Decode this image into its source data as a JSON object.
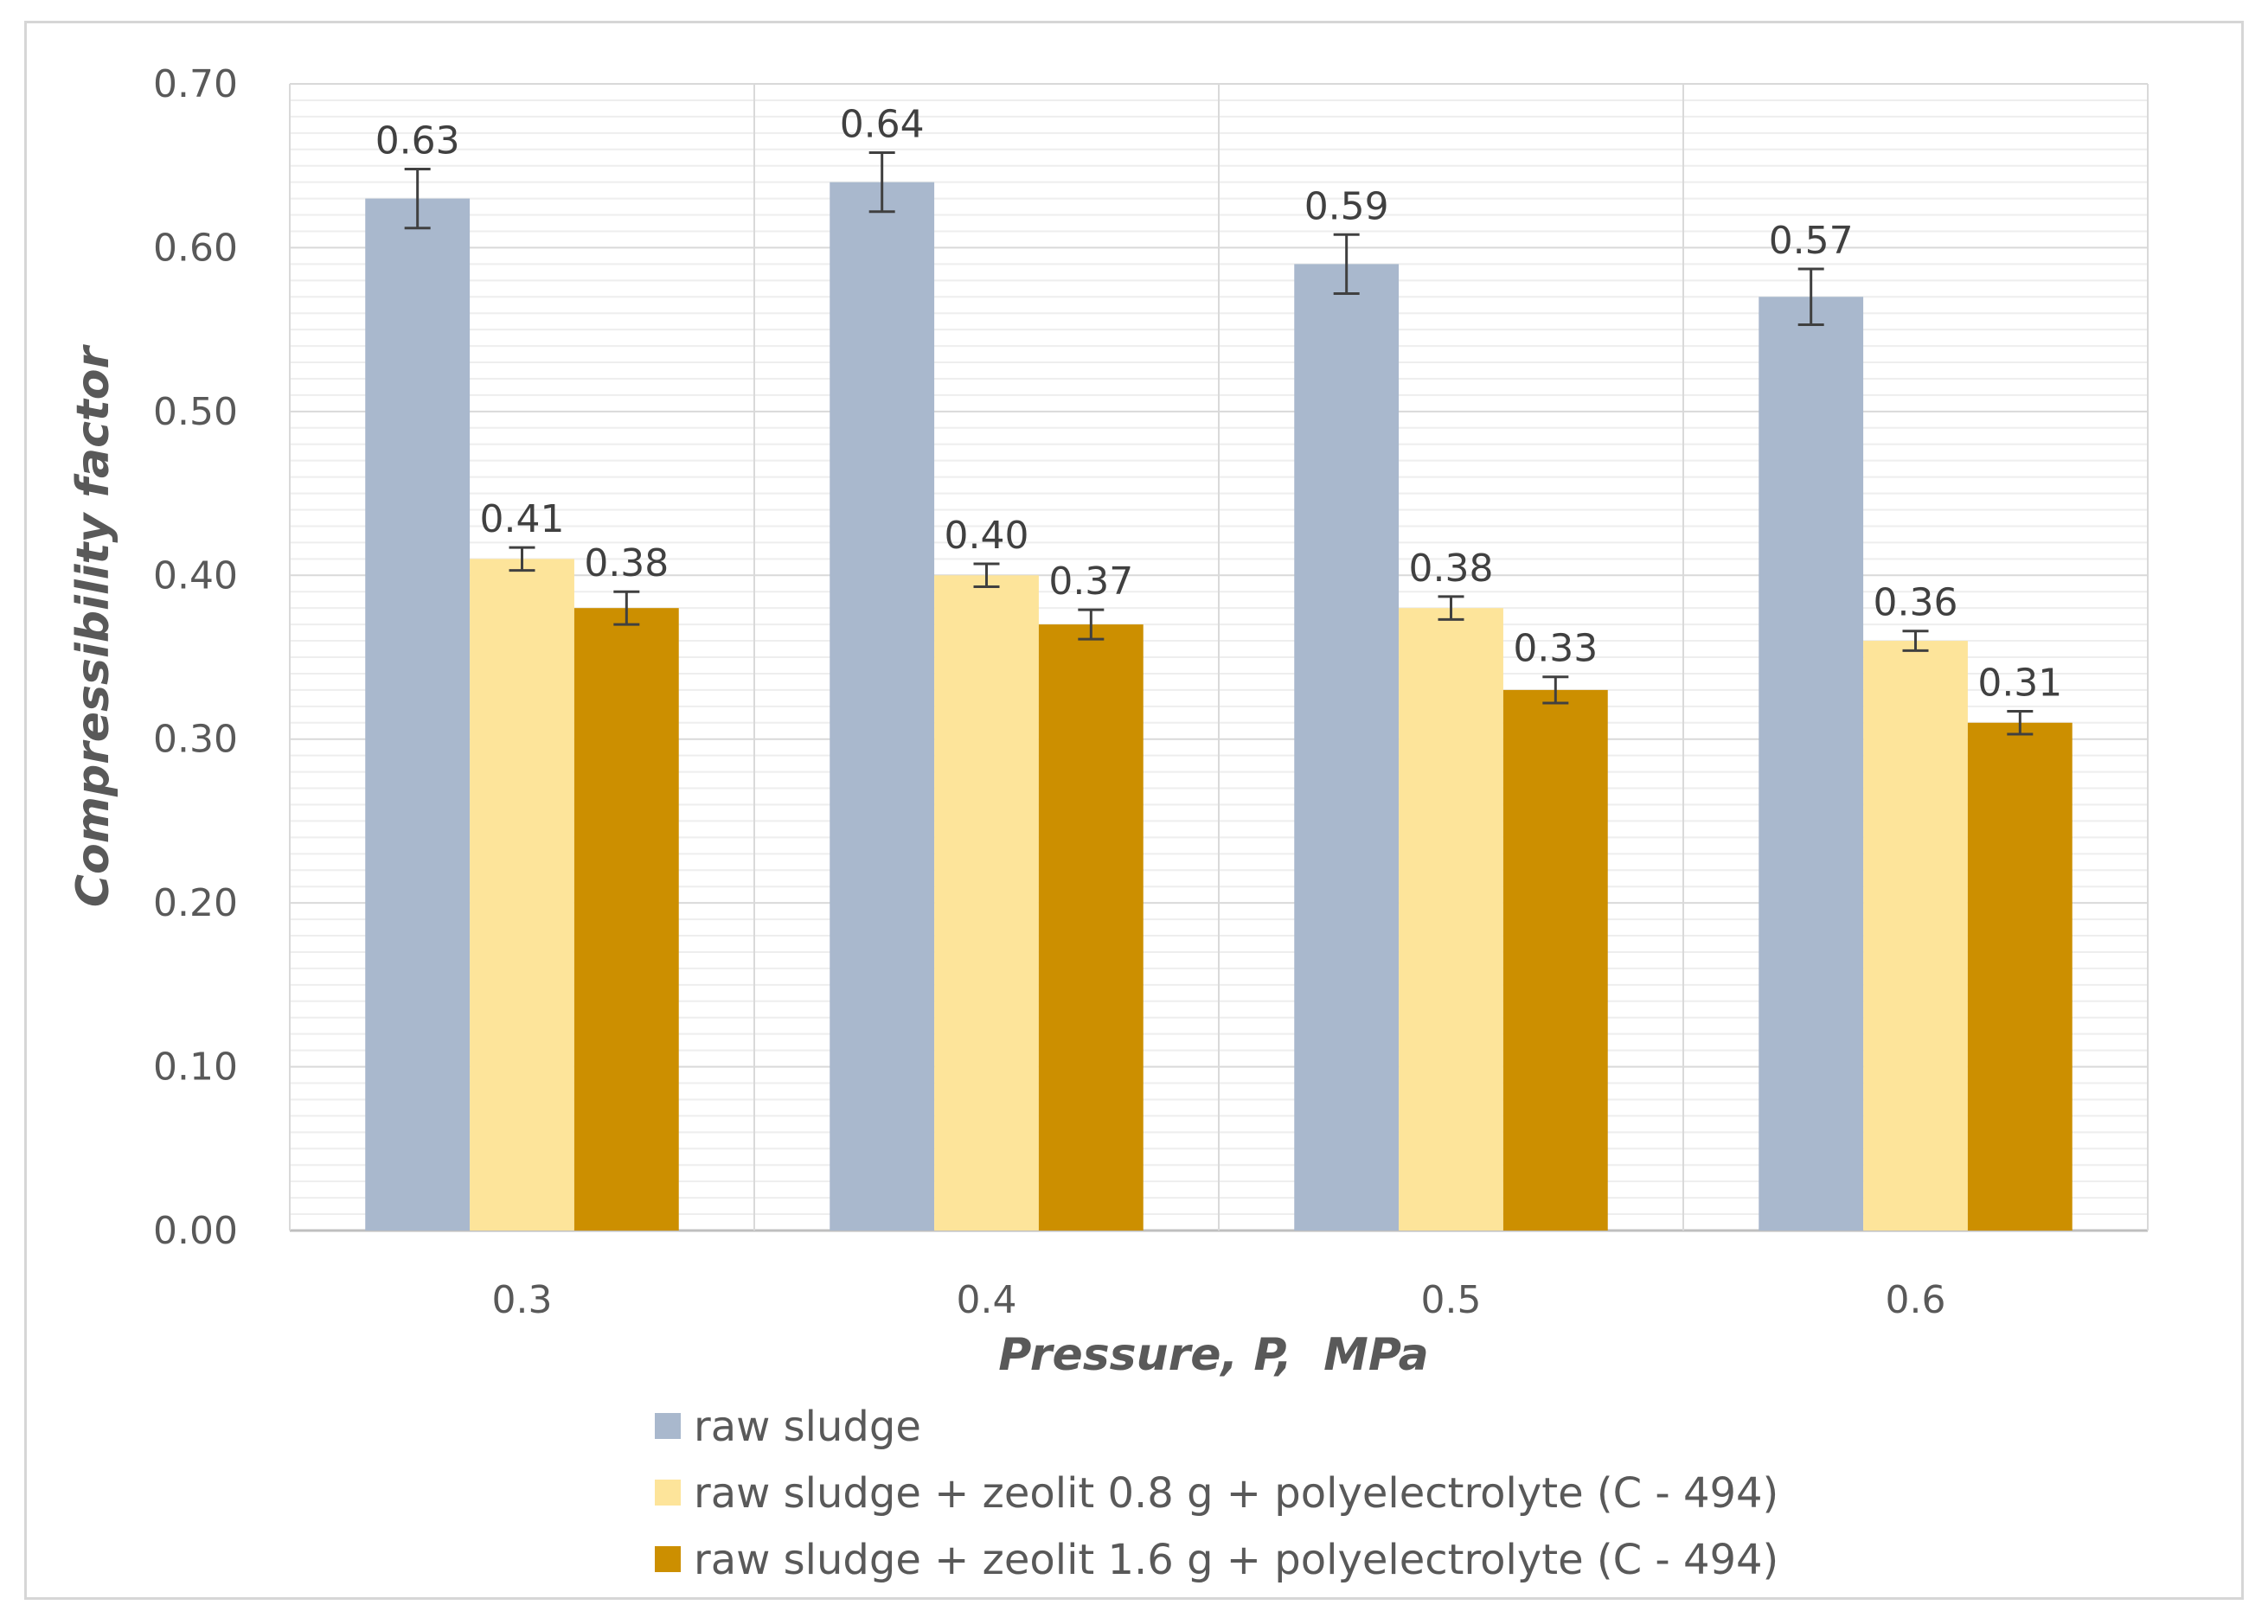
{
  "chart_data": {
    "type": "bar",
    "title": "",
    "xlabel": "Pressure, P,  MPa",
    "ylabel": "Compressibility factor",
    "ylim": [
      0,
      0.7
    ],
    "yticks": [
      "0.00",
      "0.10",
      "0.20",
      "0.30",
      "0.40",
      "0.50",
      "0.60",
      "0.70"
    ],
    "categories": [
      "0.3",
      "0.4",
      "0.5",
      "0.6"
    ],
    "grid": true,
    "legend_position": "bottom",
    "series": [
      {
        "name": "raw sludge",
        "color": "#a9b8cd",
        "values": [
          0.63,
          0.64,
          0.59,
          0.57
        ],
        "labels": [
          "0.63",
          "0.64",
          "0.59",
          "0.57"
        ],
        "error": [
          0.018,
          0.018,
          0.018,
          0.017
        ]
      },
      {
        "name": "raw sludge + zeolit 0.8 g + polyelectrolyte (C - 494)",
        "color": "#fde49a",
        "values": [
          0.41,
          0.4,
          0.38,
          0.36
        ],
        "labels": [
          "0.41",
          "0.40",
          "0.38",
          "0.36"
        ],
        "error": [
          0.007,
          0.007,
          0.007,
          0.006
        ]
      },
      {
        "name": "raw sludge + zeolit 1.6 g + polyelectrolyte (C - 494)",
        "color": "#cc8f00",
        "values": [
          0.38,
          0.37,
          0.33,
          0.31
        ],
        "labels": [
          "0.38",
          "0.37",
          "0.33",
          "0.31"
        ],
        "error": [
          0.01,
          0.009,
          0.008,
          0.007
        ]
      }
    ]
  }
}
